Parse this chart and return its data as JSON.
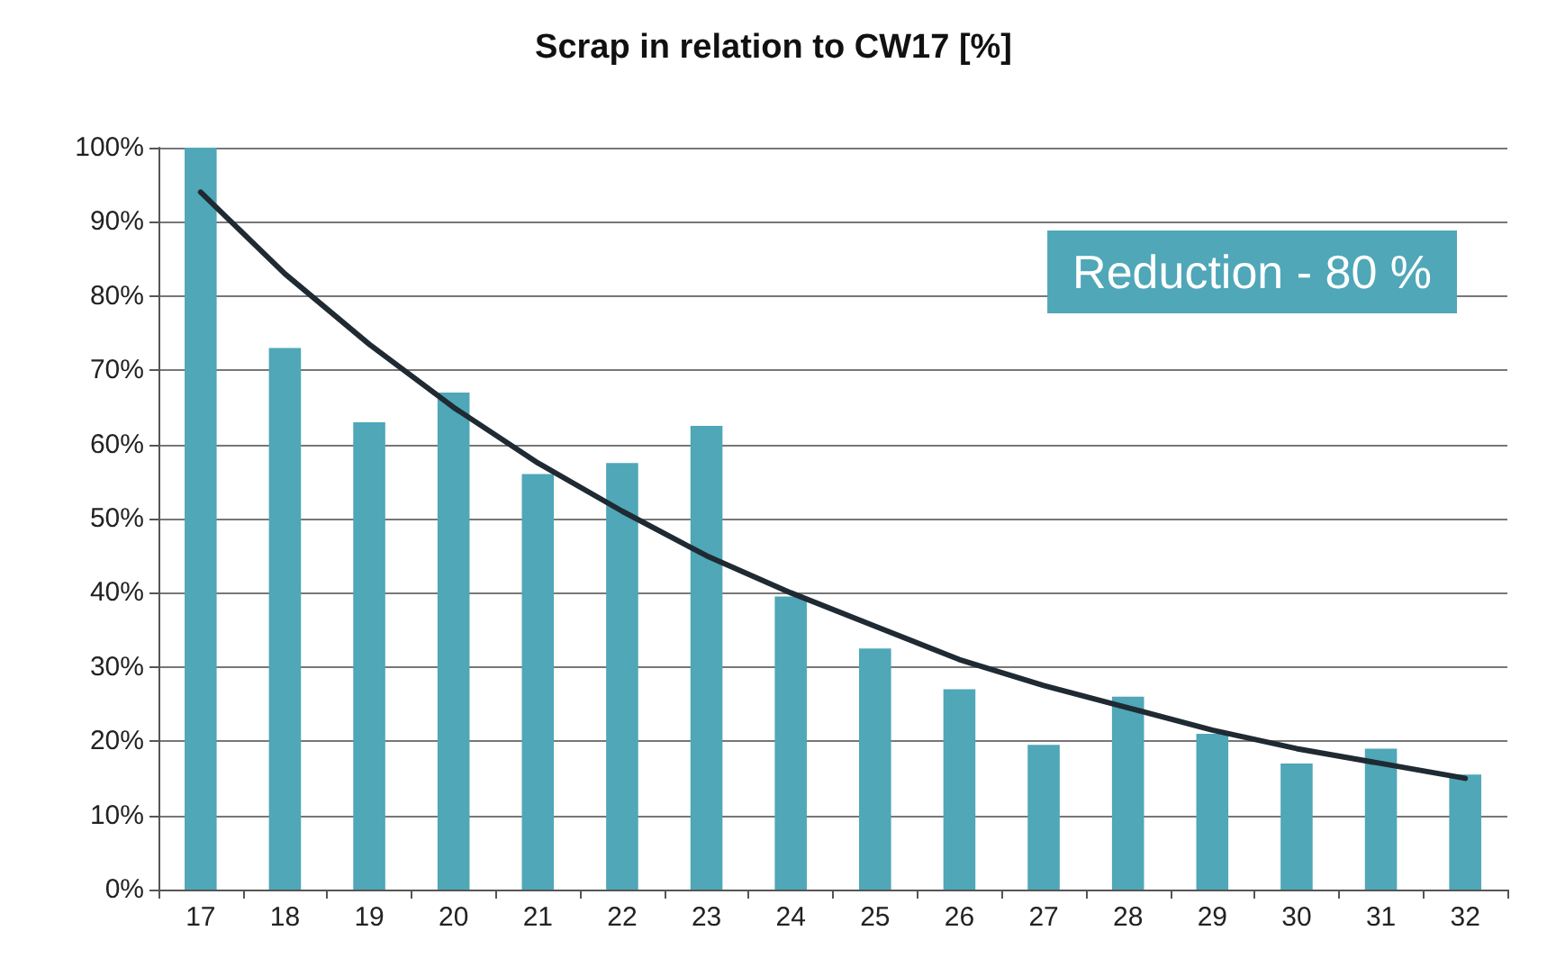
{
  "chart_data": {
    "type": "bar",
    "title": "Scrap in relation to CW17 [%]",
    "categories": [
      "17",
      "18",
      "19",
      "20",
      "21",
      "22",
      "23",
      "24",
      "25",
      "26",
      "27",
      "28",
      "29",
      "30",
      "31",
      "32"
    ],
    "series": [
      {
        "color": "#4fa7b8",
        "values": [
          100,
          73,
          63,
          67,
          56,
          57.5,
          62.5,
          39.5,
          32.5,
          27,
          19.5,
          26,
          21,
          17,
          19,
          15.5
        ]
      },
      {
        "type": "line",
        "color": "#1f2a33",
        "marker": "none",
        "line_style": "solid",
        "values": [
          94,
          83,
          73.5,
          65,
          57.5,
          51,
          45,
          40,
          35.5,
          31,
          27.5,
          24.5,
          21.5,
          19,
          17,
          15
        ]
      }
    ],
    "ylim": [
      0,
      100
    ],
    "yticks": [
      {
        "value": 0,
        "label": "0%"
      },
      {
        "value": 10,
        "label": "10%"
      },
      {
        "value": 20,
        "label": "20%"
      },
      {
        "value": 30,
        "label": "30%"
      },
      {
        "value": 40,
        "label": "40%"
      },
      {
        "value": 50,
        "label": "50%"
      },
      {
        "value": 60,
        "label": "60%"
      },
      {
        "value": 70,
        "label": "70%"
      },
      {
        "value": 80,
        "label": "80%"
      },
      {
        "value": 90,
        "label": "90%"
      },
      {
        "value": 100,
        "label": "100%"
      }
    ],
    "grid": "y",
    "annotations": [
      "Reduction - 80 %"
    ]
  }
}
